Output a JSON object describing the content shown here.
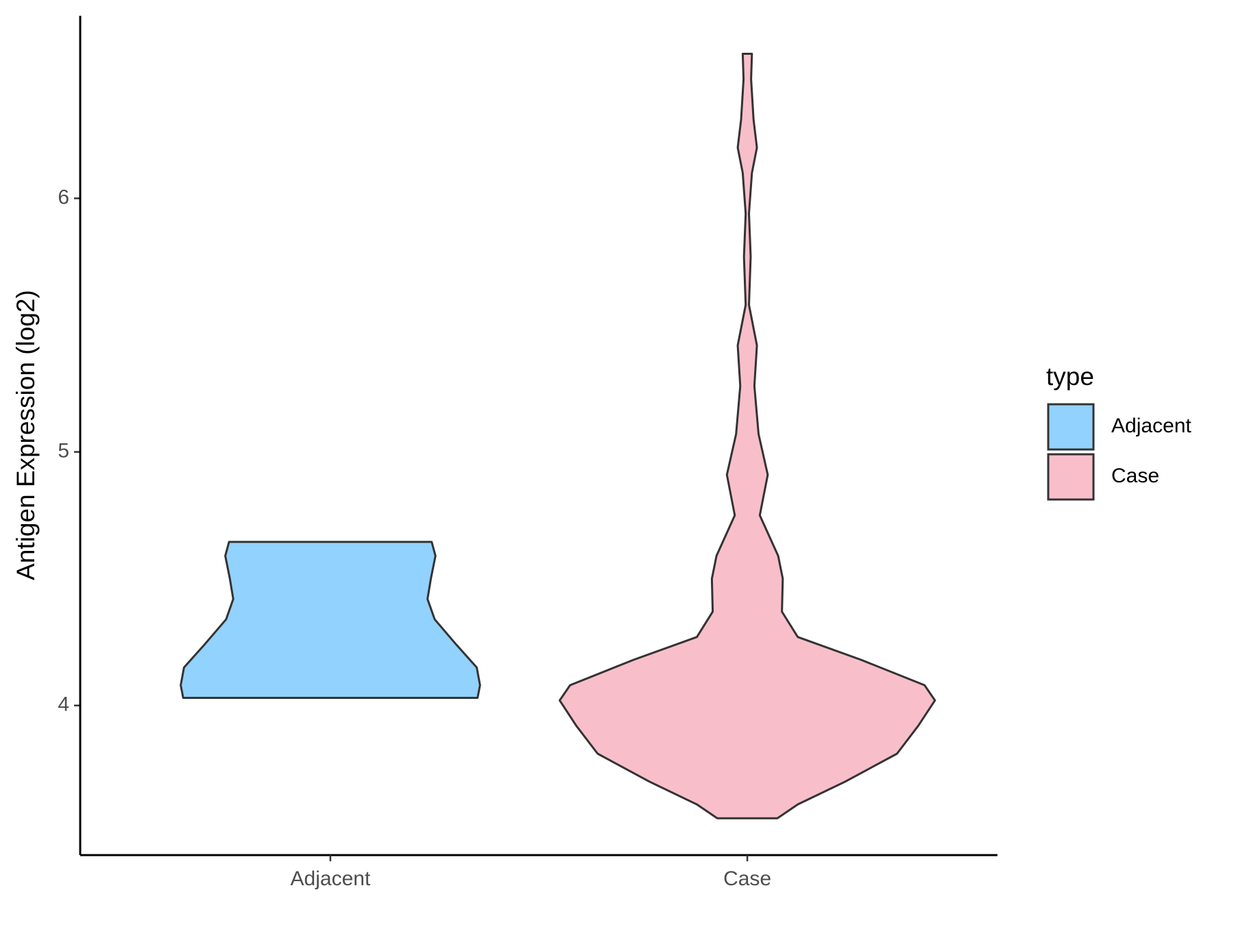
{
  "chart_data": {
    "type": "violin",
    "y_label": "Antigen Expression (log2)",
    "categories": [
      "Adjacent",
      "Case"
    ],
    "legend_title": "type",
    "legend": "right",
    "ylim": [
      3.41,
      6.72
    ],
    "yticks": [
      4,
      5,
      6
    ],
    "series": [
      {
        "name": "Adjacent",
        "color": "#92d2fe",
        "y": [
          4.645,
          4.59,
          4.5,
          4.42,
          4.34,
          4.24,
          4.15,
          4.08,
          4.03
        ],
        "width": [
          0.243,
          0.252,
          0.241,
          0.233,
          0.25,
          0.302,
          0.351,
          0.359,
          0.353
        ]
      },
      {
        "name": "Case",
        "color": "#f8bfcb",
        "y": [
          6.57,
          6.47,
          6.31,
          6.2,
          6.1,
          5.94,
          5.77,
          5.58,
          5.42,
          5.26,
          5.07,
          4.91,
          4.75,
          4.59,
          4.5,
          4.37,
          4.27,
          4.18,
          4.08,
          4.02,
          3.92,
          3.81,
          3.7,
          3.61,
          3.555
        ],
        "width": [
          0.011,
          0.009,
          0.015,
          0.023,
          0.011,
          0.004,
          0.008,
          0.004,
          0.023,
          0.017,
          0.027,
          0.049,
          0.03,
          0.074,
          0.085,
          0.083,
          0.121,
          0.273,
          0.425,
          0.45,
          0.41,
          0.359,
          0.235,
          0.121,
          0.072
        ]
      }
    ]
  }
}
